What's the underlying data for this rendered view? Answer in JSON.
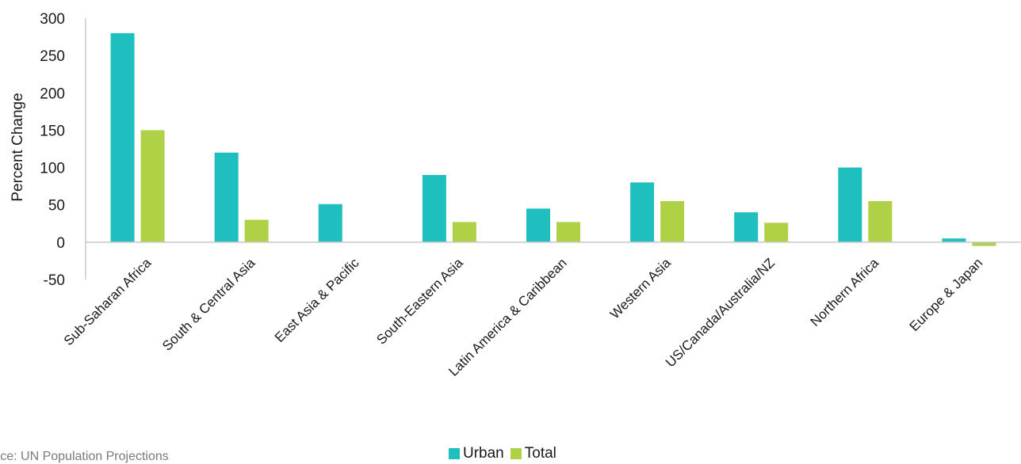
{
  "chart_data": {
    "type": "bar",
    "ylabel": "Percent Change",
    "ylim": [
      -50,
      300
    ],
    "yticks": [
      "300",
      "250",
      "200",
      "150",
      "100",
      "50",
      "0",
      "-50"
    ],
    "categories": [
      "Sub-Saharan Africa",
      "South & Central Asia",
      "East Asia & Pacific",
      "South-Eastern Asia",
      "Latin America & Caribbean",
      "Western Asia",
      "US/Canada/Australia/NZ",
      "Northern Africa",
      "Europe & Japan"
    ],
    "series": [
      {
        "name": "Urban",
        "color": "#1fbfbf",
        "values": [
          280,
          120,
          51,
          90,
          45,
          80,
          40,
          100,
          5
        ]
      },
      {
        "name": "Total",
        "color": "#aed145",
        "values": [
          150,
          30,
          0,
          27,
          27,
          55,
          26,
          55,
          -5
        ]
      }
    ],
    "legend_position": "bottom",
    "grid": false
  },
  "source": "urce: UN Population Projections"
}
